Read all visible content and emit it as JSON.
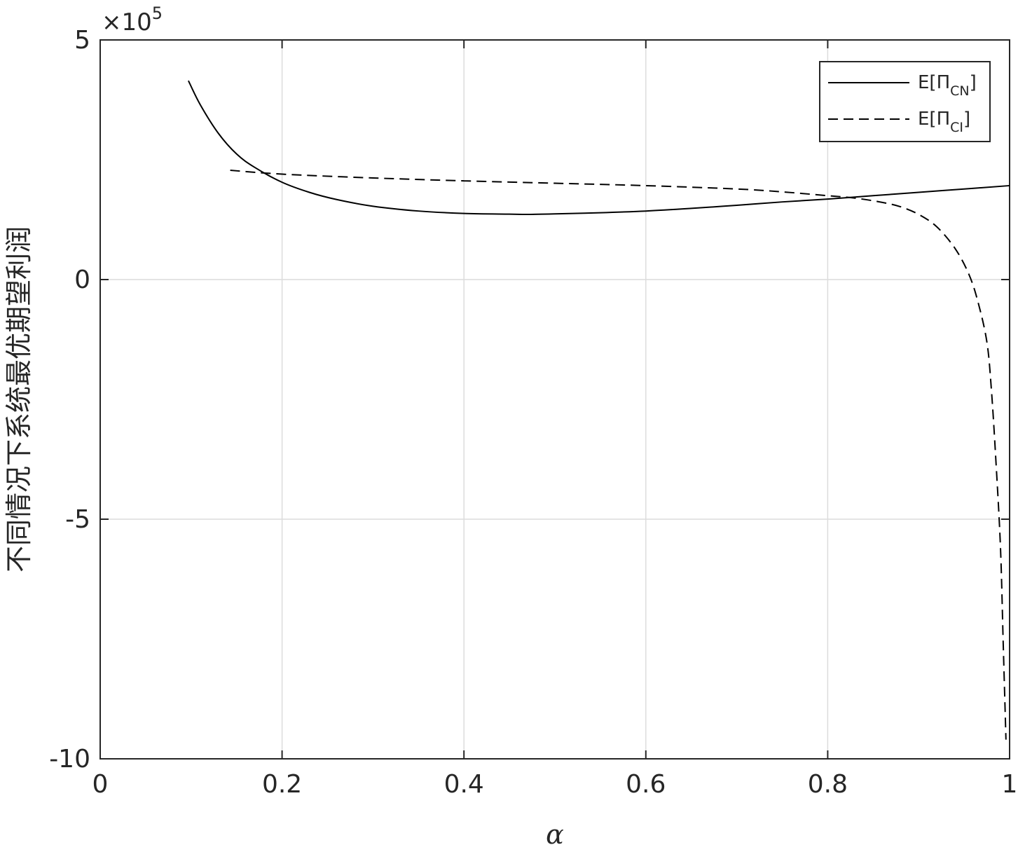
{
  "chart_data": {
    "type": "line",
    "xlabel": "α",
    "ylabel": "不同情况下系统最优期望利润",
    "xlim": [
      0,
      1
    ],
    "ylim": [
      -1000000,
      500000
    ],
    "y_multiplier_label": "×10",
    "y_multiplier_exponent": "5",
    "x_ticks": [
      "0",
      "0.2",
      "0.4",
      "0.6",
      "0.8",
      "1"
    ],
    "y_ticks": [
      "-10",
      "-5",
      "0",
      "5"
    ],
    "x_tick_values": [
      0,
      0.2,
      0.4,
      0.6,
      0.8,
      1
    ],
    "y_tick_values": [
      -1000000,
      -500000,
      0,
      500000
    ],
    "grid": true,
    "legend_position": "top-right",
    "series": [
      {
        "name": "E[Π_CN]",
        "legend_main": "E[Π",
        "legend_sub": "CN",
        "legend_close": "]",
        "line_style": "solid",
        "color": "#000000",
        "x": [
          0.097,
          0.11,
          0.13,
          0.15,
          0.17,
          0.2,
          0.23,
          0.26,
          0.3,
          0.35,
          0.4,
          0.45,
          0.47,
          0.5,
          0.55,
          0.6,
          0.65,
          0.7,
          0.75,
          0.8,
          0.85,
          0.9,
          0.95,
          1.0
        ],
        "y": [
          415000,
          365000,
          305000,
          262000,
          234000,
          203000,
          182000,
          167000,
          153000,
          143000,
          138000,
          136500,
          136000,
          137000,
          139500,
          143000,
          148500,
          155000,
          162000,
          168000,
          175000,
          182000,
          189000,
          196000
        ]
      },
      {
        "name": "E[Π_CI]",
        "legend_main": "E[Π",
        "legend_sub": "CI",
        "legend_close": "]",
        "line_style": "dashed",
        "color": "#000000",
        "x": [
          0.143,
          0.2,
          0.3,
          0.4,
          0.5,
          0.6,
          0.7,
          0.75,
          0.8,
          0.83,
          0.86,
          0.88,
          0.9,
          0.92,
          0.94,
          0.955,
          0.965,
          0.975,
          0.98,
          0.985,
          0.99,
          0.993,
          0.996
        ],
        "y": [
          228000,
          220000,
          212000,
          206000,
          201000,
          196000,
          189000,
          183000,
          175000,
          170000,
          161000,
          152000,
          136000,
          110000,
          65000,
          12000,
          -45000,
          -130000,
          -230000,
          -380000,
          -560000,
          -760000,
          -960000
        ]
      }
    ]
  }
}
